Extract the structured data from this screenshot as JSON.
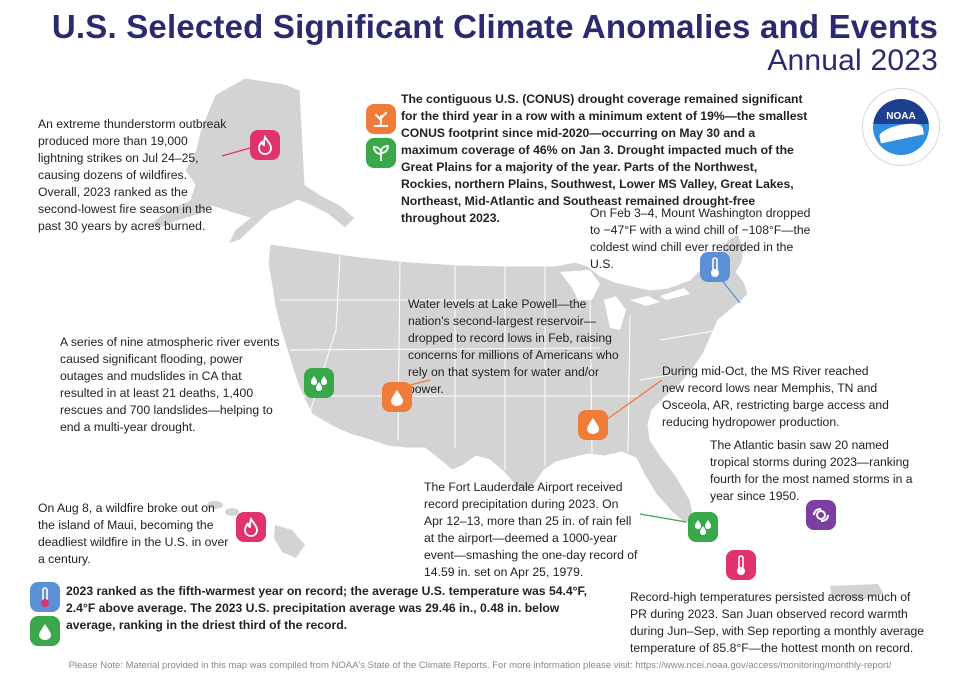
{
  "header": {
    "title": "U.S. Selected Significant Climate Anomalies and Events",
    "subtitle": "Annual 2023"
  },
  "logo": {
    "text": "NOAA",
    "ring_text": "NATIONAL OCEANIC AND ATMOSPHERIC ADMINISTRATION · U.S. DEPARTMENT OF COMMERCE"
  },
  "drought": {
    "text": "The contiguous U.S. (CONUS) drought coverage remained significant for the third year in a row with a minimum extent of 19%—the smallest CONUS footprint since mid-2020—occurring on May 30 and a maximum coverage of 46% on Jan 3. Drought impacted much of the Great Plains for a majority of the year. Parts of the Northwest, Rockies, northern Plains, Southwest, Lower MS Valley, Great Lakes, Northeast, Mid-Atlantic and Southeast remained drought-free throughout 2023."
  },
  "events": {
    "alaska": "An extreme thunderstorm outbreak produced more than 19,000 lightning strikes on Jul 24–25, causing dozens of wildfires. Overall, 2023 ranked as the second-lowest fire season in the past 30 years by acres burned.",
    "mt_washington": "On Feb 3–4, Mount Washington dropped to −47°F with a wind chill of −108°F—the coldest wind chill ever recorded in the U.S.",
    "lake_powell": "Water levels at Lake Powell—the nation's second-largest reservoir—dropped to record lows in Feb, raising concerns for millions of Americans who rely on that system for water and/or power.",
    "california": "A series of nine atmospheric river events caused significant flooding, power outages and mudslides in CA that resulted in at least 21 deaths, 1,400 rescues and 700 landslides—helping to end a multi-year drought.",
    "mississippi": "During mid-Oct, the MS River reached new record lows near Memphis, TN and Osceola, AR, restricting barge access and reducing hydropower production.",
    "atlantic": "The Atlantic basin saw 20 named tropical storms during 2023—ranking fourth for the most named storms in a year since 1950.",
    "fort_lauderdale": "The Fort Lauderdale Airport received record precipitation during 2023. On Apr 12–13, more than 25 in. of rain fell at the airport—deemed a 1000-year event—smashing the one-day record of 14.59 in. set on Apr 25, 1979.",
    "maui": "On Aug 8, a wildfire broke out on the island of Maui, becoming the deadliest wildfire in the U.S. in over a century.",
    "puerto_rico": "Record-high temperatures persisted across much of PR during 2023. San Juan observed record warmth during Jun–Sep, with Sep reporting a monthly average temperature of 85.8°F—the hottest month on record."
  },
  "summary": {
    "text": "2023 ranked as the fifth-warmest year on record; the average U.S. temperature was 54.4°F, 2.4°F above average. The 2023 U.S. precipitation average was 29.46 in., 0.48 in. below average, ranking in the driest third of the record."
  },
  "footer": {
    "note": "Please Note: Material provided in this map was compiled from NOAA's State of the Climate Reports. For more information please visit: https://www.ncei.noaa.gov/access/monitoring/monthly-report/"
  },
  "colors": {
    "title": "#2b2a6e",
    "fire": "#e0336e",
    "drought": "#f07c3a",
    "precip": "#3aa84a",
    "cold": "#5b8fd6",
    "storm": "#7a3fa0",
    "map": "#d3d3d3"
  },
  "icons": [
    "fire-icon",
    "drought-icon",
    "plant-icon",
    "thermometer-icon",
    "water-drop-icon",
    "rain-icon",
    "hurricane-icon"
  ]
}
